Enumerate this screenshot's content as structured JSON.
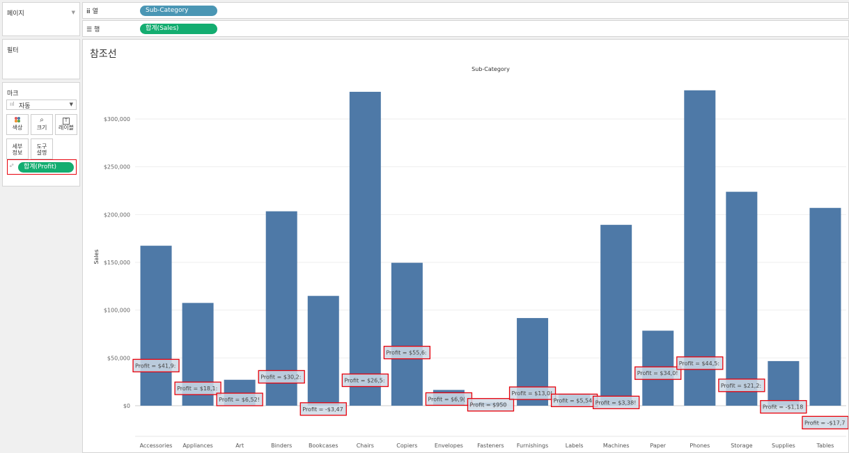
{
  "left_panel": {
    "pages": {
      "title": "페이지"
    },
    "filters": {
      "title": "필터"
    },
    "marks": {
      "title": "마크",
      "type_select": "자동",
      "buttons": [
        {
          "label": "색상",
          "icon": "color-dots-icon"
        },
        {
          "label": "크기",
          "icon": "size-icon"
        },
        {
          "label": "레이블",
          "icon": "label-icon"
        },
        {
          "label": "세부 정보",
          "icon": "detail-icon"
        },
        {
          "label": "도구 설명",
          "icon": "tooltip-icon"
        }
      ],
      "pill": "합계(Profit)"
    }
  },
  "shelves": {
    "columns": {
      "label": "열",
      "pill": "Sub-Category"
    },
    "rows": {
      "label": "행",
      "pill": "합계(Sales)"
    }
  },
  "view": {
    "title": "참조선",
    "colors": {
      "bar": "#4e79a7",
      "highlight": "#e8000b",
      "pill_blue": "#4a96b4",
      "pill_green": "#13ad70"
    }
  },
  "chart_data": {
    "type": "bar",
    "title": "",
    "xlabel": "Sub-Category",
    "ylabel": "Sales",
    "ylim": [
      -15000,
      345000
    ],
    "yticks": [
      0,
      50000,
      100000,
      150000,
      200000,
      250000,
      300000
    ],
    "ytick_labels": [
      "$0",
      "$50,000",
      "$100,000",
      "$150,000",
      "$200,000",
      "$250,000",
      "$300,000"
    ],
    "grid": true,
    "categories": [
      "Accessories",
      "Appliances",
      "Art",
      "Binders",
      "Bookcases",
      "Chairs",
      "Copiers",
      "Envelopes",
      "Fasteners",
      "Furnishings",
      "Labels",
      "Machines",
      "Paper",
      "Phones",
      "Storage",
      "Supplies",
      "Tables"
    ],
    "values": [
      167380,
      107532,
      27119,
      203413,
      114880,
      328449,
      149528,
      16476,
      3024,
      91705,
      12486,
      189239,
      78479,
      330007,
      223844,
      46674,
      206966
    ],
    "profit_ref_values": [
      41937,
      18138,
      6528,
      30222,
      -3473,
      26590,
      55618,
      6964,
      950,
      13059,
      5546,
      3385,
      34054,
      44516,
      21279,
      -1189,
      -17725
    ],
    "profit_labels": [
      "Profit = $41,9:",
      "Profit = $18,1:",
      "Profit = $6,52!",
      "Profit = $30,2:",
      "Profit = -$3,47",
      "Profit = $26,5:",
      "Profit = $55,6:",
      "Profit = $6,9(",
      "Profit = $950",
      "Profit = $13,0!",
      "Profit = $5,54",
      "Profit = $3,38!",
      "Profit = $34,0!",
      "Profit = $44,5:",
      "Profit = $21,2:",
      "Profit = -$1,18",
      "Profit = -$17,7"
    ]
  }
}
